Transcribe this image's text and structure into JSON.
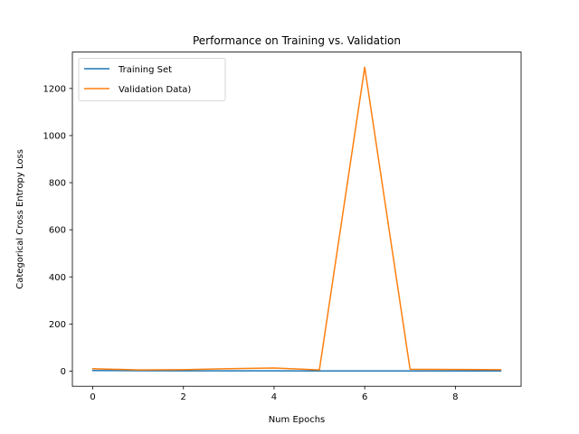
{
  "chart_data": {
    "type": "line",
    "title": "Performance on Training vs. Validation",
    "xlabel": "Num Epochs",
    "ylabel": "Categorical Cross Entropy Loss",
    "x": [
      0,
      1,
      2,
      3,
      4,
      5,
      6,
      7,
      8,
      9
    ],
    "xlim": [
      -0.45,
      9.45
    ],
    "ylim": [
      -64.5,
      1354.5
    ],
    "xticks": [
      0,
      2,
      4,
      6,
      8
    ],
    "yticks": [
      0,
      200,
      400,
      600,
      800,
      1000,
      1200
    ],
    "grid": false,
    "legend_position": "top-left",
    "series": [
      {
        "name": "Training Set",
        "color": "#1f77b4",
        "values": [
          2.5,
          1.5,
          1.2,
          1.0,
          0.9,
          0.8,
          0.8,
          0.7,
          0.7,
          0.6
        ]
      },
      {
        "name": "Validation Data)",
        "color": "#ff7f0e",
        "values": [
          10,
          5,
          6,
          10,
          13,
          5,
          1290,
          8,
          7,
          6
        ]
      }
    ]
  }
}
